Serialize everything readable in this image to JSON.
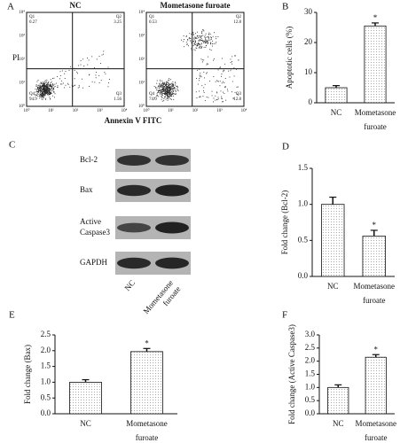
{
  "flow": {
    "panel": "A",
    "y_label": "PI",
    "x_label": "Annexin V FITC",
    "axis_ticks": [
      "10⁰",
      "10¹",
      "10²",
      "10³",
      "10⁴"
    ],
    "plots": [
      {
        "title": "NC",
        "quadrants": [
          {
            "name": "Q1",
            "value": "0.27"
          },
          {
            "name": "Q2",
            "value": "3.25"
          },
          {
            "name": "Q4",
            "value": "94.9"
          },
          {
            "name": "Q3",
            "value": "1.56"
          }
        ]
      },
      {
        "title": "Mometasone furoate",
        "quadrants": [
          {
            "name": "Q1",
            "value": "0.53"
          },
          {
            "name": "Q2",
            "value": "12.8"
          },
          {
            "name": "Q4",
            "value": "74.0"
          },
          {
            "name": "Q3",
            "value": "12.8"
          }
        ]
      }
    ]
  },
  "blot": {
    "panel": "C",
    "rows": [
      "Bcl-2",
      "Bax",
      "Active Caspase3",
      "GAPDH"
    ],
    "lanes": [
      "NC",
      "Mometasone furoate"
    ]
  },
  "chart_data": [
    {
      "type": "bar",
      "panel": "B",
      "y_label": "Apoptotic cells (%)",
      "categories": [
        "NC",
        "Mometasone furoate"
      ],
      "values": [
        5,
        25.5
      ],
      "errors": [
        0.7,
        1.0
      ],
      "annotations": [
        null,
        "*"
      ],
      "ylim": [
        0,
        30
      ],
      "yticks": [
        0,
        10,
        20,
        30
      ]
    },
    {
      "type": "bar",
      "panel": "D",
      "y_label": "Fold change (Bcl-2)",
      "categories": [
        "NC",
        "Mometasone furoate"
      ],
      "values": [
        1.0,
        0.56
      ],
      "errors": [
        0.1,
        0.08
      ],
      "annotations": [
        null,
        "*"
      ],
      "ylim": [
        0,
        1.5
      ],
      "yticks": [
        {
          "value": 0,
          "label": "0.0"
        },
        0.5,
        {
          "value": 1,
          "label": "1.0"
        },
        1.5
      ]
    },
    {
      "type": "bar",
      "panel": "E",
      "y_label": "Fold change (Bax)",
      "categories": [
        "NC",
        "Mometasone furoate"
      ],
      "values": [
        1.0,
        1.97
      ],
      "errors": [
        0.08,
        0.1
      ],
      "annotations": [
        null,
        "*"
      ],
      "ylim": [
        0,
        2.5
      ],
      "yticks": [
        {
          "value": 0,
          "label": "0.0"
        },
        0.5,
        {
          "value": 1,
          "label": "1.0"
        },
        1.5,
        {
          "value": 2,
          "label": "2.0"
        },
        2.5
      ]
    },
    {
      "type": "bar",
      "panel": "F",
      "y_label": "Fold change (Active Caspase3)",
      "categories": [
        "NC",
        "Mometasone furoate"
      ],
      "values": [
        1.0,
        2.15
      ],
      "errors": [
        0.1,
        0.1
      ],
      "annotations": [
        null,
        "*"
      ],
      "ylim": [
        0,
        3
      ],
      "yticks": [
        {
          "value": 0,
          "label": "0.0"
        },
        0.5,
        {
          "value": 1,
          "label": "1.0"
        },
        1.5,
        {
          "value": 2,
          "label": "2.0"
        },
        2.5,
        {
          "value": 3,
          "label": "3.0"
        }
      ]
    }
  ]
}
